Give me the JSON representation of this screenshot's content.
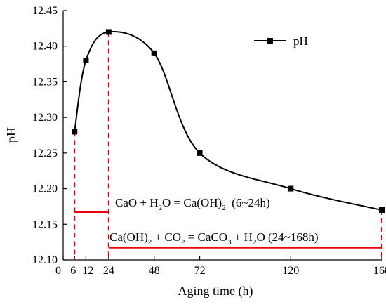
{
  "chart_data": {
    "type": "line",
    "title": "",
    "xlabel": "Aging time (h)",
    "ylabel": "pH",
    "xlim": [
      0,
      168
    ],
    "ylim": [
      12.1,
      12.45
    ],
    "x_ticks": [
      0,
      6,
      12,
      24,
      48,
      72,
      120,
      168
    ],
    "x_tick_labels": [
      "0",
      "6",
      "12",
      "24",
      "48",
      "72",
      "120",
      "168"
    ],
    "y_ticks": [
      12.1,
      12.15,
      12.2,
      12.25,
      12.3,
      12.35,
      12.4,
      12.45
    ],
    "y_tick_labels": [
      "12.10",
      "12.15",
      "12.20",
      "12.25",
      "12.30",
      "12.35",
      "12.40",
      "12.45"
    ],
    "grid": false,
    "legend_position": "top-right",
    "series": [
      {
        "name": "pH",
        "x": [
          6,
          12,
          24,
          48,
          72,
          120,
          168
        ],
        "y": [
          12.28,
          12.38,
          12.42,
          12.39,
          12.25,
          12.2,
          12.17
        ],
        "color": "#000000",
        "marker": "square"
      }
    ],
    "reference_lines": {
      "color": "#e8000b",
      "vertical_x": [
        6,
        24,
        168
      ]
    },
    "annotations": [
      {
        "id": "reaction1",
        "x_range": [
          6,
          24
        ],
        "y": 12.167,
        "parts": [
          {
            "t": "CaO + H",
            "sub": false
          },
          {
            "t": "2",
            "sub": true
          },
          {
            "t": "O = Ca(OH)",
            "sub": false
          },
          {
            "t": "2",
            "sub": true
          },
          {
            "t": "  (6~24h)",
            "sub": false
          }
        ]
      },
      {
        "id": "reaction2",
        "x_range": [
          24,
          168
        ],
        "y": 12.117,
        "parts": [
          {
            "t": "Ca(OH)",
            "sub": false
          },
          {
            "t": "2",
            "sub": true
          },
          {
            "t": " + CO",
            "sub": false
          },
          {
            "t": "2",
            "sub": true
          },
          {
            "t": " = CaCO",
            "sub": false
          },
          {
            "t": "3",
            "sub": true
          },
          {
            "t": " + H",
            "sub": false
          },
          {
            "t": "2",
            "sub": true
          },
          {
            "t": "O (24~168h)",
            "sub": false
          }
        ]
      }
    ]
  }
}
